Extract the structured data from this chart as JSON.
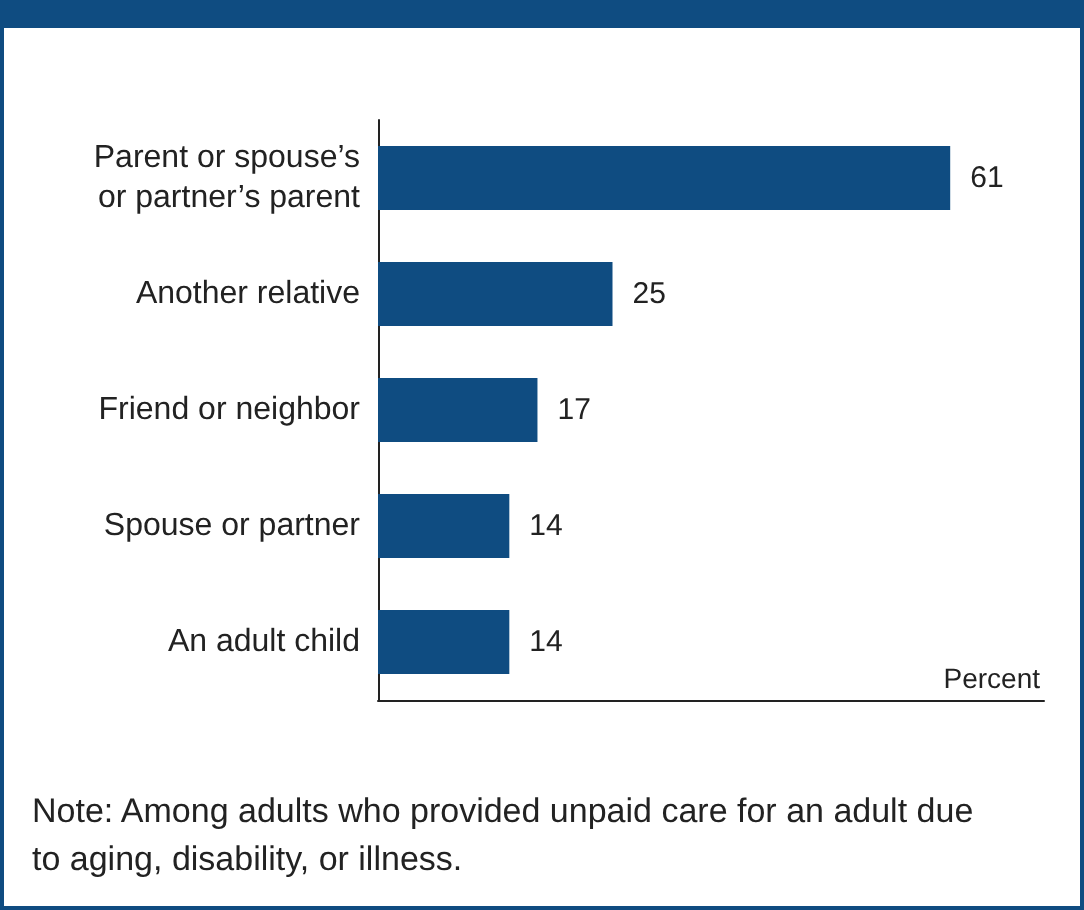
{
  "chart_data": {
    "type": "bar",
    "orientation": "horizontal",
    "categories": [
      "Parent or spouse’s or partner’s parent",
      "Another relative",
      "Friend or neighbor",
      "Spouse or partner",
      "An adult child"
    ],
    "values": [
      61,
      25,
      17,
      14,
      14
    ],
    "color": "#0f4c81",
    "xlim": [
      0,
      71
    ],
    "xlabel": "Percent",
    "data_labels": true,
    "tick_labels": "y",
    "annotations": [
      "Note: Among adults who provided unpaid care for an adult due to aging, disability, or illness."
    ]
  }
}
